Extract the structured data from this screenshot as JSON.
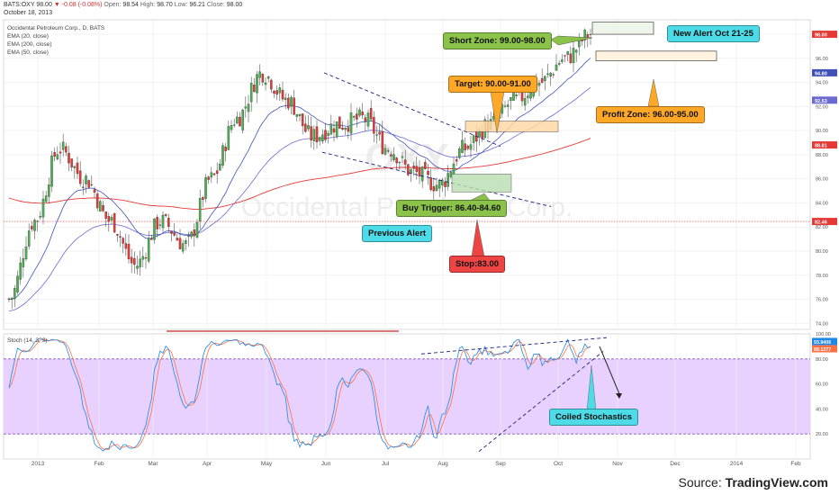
{
  "header": {
    "symbol": "BATS:OXY",
    "last": "98.00",
    "change": "▼ -0.08 (-0.08%)",
    "open_label": "Open:",
    "open": "98.54",
    "high_label": "High:",
    "high": "98.70",
    "low_label": "Low:",
    "low": "96.21",
    "close_label": "Close:",
    "close": "98.00",
    "date": "October 18, 2013"
  },
  "indicators": {
    "title": "Occidental Petroleum Corp., D, BATS",
    "ema20": "EMA (20, close)",
    "ema200": "EMA (200, close)",
    "ema50": "EMA (50, close)",
    "stoch": "Stoch (14, 3, 3)"
  },
  "watermark": {
    "symbol": "OXY",
    "name": "Occidental Petroleum Corp."
  },
  "callouts": {
    "short_zone": "Short Zone: 99.00-98.00",
    "new_alert": "New Alert Oct 21-25",
    "target": "Target: 90.00-91.00",
    "profit_zone": "Profit Zone: 96.00-95.00",
    "buy_trigger": "Buy Trigger: 86.40-84.60",
    "previous_alert": "Previous Alert",
    "stop": "Stop:83.00",
    "coiled": "Coiled Stochastics"
  },
  "source": {
    "prefix": "Source: ",
    "brand": "TradingView.com"
  },
  "colors": {
    "up": "#4caf50",
    "down": "#e53935",
    "ema20": "#3f51b5",
    "ema50": "#6a6ad0",
    "ema200": "#e53935",
    "stoch_k": "#1e88e5",
    "stoch_d": "#ff7043",
    "stoch_band": "#e6ccff"
  },
  "chart_data": {
    "type": "candlestick",
    "x_ticks": [
      "2013",
      "Feb",
      "Mar",
      "Apr",
      "May",
      "Jun",
      "Jul",
      "Aug",
      "Sep",
      "Oct",
      "Nov",
      "Dec",
      "2014",
      "Feb"
    ],
    "y_ticks": [
      "98.00",
      "96.00",
      "94.00",
      "92.00",
      "90.00",
      "88.00",
      "86.00",
      "84.00",
      "82.00",
      "80.00",
      "78.00",
      "76.00",
      "74.00"
    ],
    "ylim": [
      73.5,
      99.2
    ],
    "price_tags": [
      {
        "value": 98.0,
        "label": "98.00",
        "color": "#e53935"
      },
      {
        "value": 94.8,
        "label": "94.80",
        "color": "#3f51b5"
      },
      {
        "value": 92.53,
        "label": "92.53",
        "color": "#6a6ad0"
      },
      {
        "value": 88.81,
        "label": "88.81",
        "color": "#e53935"
      },
      {
        "value": 82.46,
        "label": "82.46",
        "color": "#e53935"
      }
    ],
    "key_points": [
      {
        "label": "early Jan",
        "close": 76.0
      },
      {
        "label": "mid Jan",
        "close": 82.5
      },
      {
        "label": "late Jan",
        "close": 88.5
      },
      {
        "label": "mid Feb",
        "close": 86.0
      },
      {
        "label": "early Mar",
        "close": 82.5
      },
      {
        "label": "early Apr",
        "close": 78.8
      },
      {
        "label": "mid Apr",
        "close": 82.5
      },
      {
        "label": "late Apr",
        "close": 80.5
      },
      {
        "label": "early May",
        "close": 86.0
      },
      {
        "label": "mid May",
        "close": 91.0
      },
      {
        "label": "late May",
        "close": 94.8
      },
      {
        "label": "early Jun",
        "close": 92.5
      },
      {
        "label": "mid Jun",
        "close": 89.5
      },
      {
        "label": "early Jul",
        "close": 90.5
      },
      {
        "label": "late Jul",
        "close": 91.0
      },
      {
        "label": "early Aug",
        "close": 88.5
      },
      {
        "label": "mid Aug",
        "close": 86.5
      },
      {
        "label": "late Aug",
        "close": 85.5
      },
      {
        "label": "early Sep",
        "close": 88.5
      },
      {
        "label": "mid Sep",
        "close": 90.5
      },
      {
        "label": "late Sep",
        "close": 92.5
      },
      {
        "label": "early Oct",
        "close": 94.0
      },
      {
        "label": "mid Oct",
        "close": 96.0
      },
      {
        "label": "Oct 18",
        "close": 98.0
      }
    ],
    "zones": [
      {
        "name": "Short Zone",
        "low": 98.0,
        "high": 99.0
      },
      {
        "name": "Profit Zone",
        "low": 95.0,
        "high": 96.0
      },
      {
        "name": "Target",
        "low": 90.0,
        "high": 91.0
      },
      {
        "name": "Buy Trigger",
        "low": 84.6,
        "high": 86.4
      }
    ],
    "stop": 83.0,
    "stoch_ticks": [
      "100.00",
      "80.00",
      "60.00",
      "40.00",
      "20.00"
    ],
    "stoch_ylim": [
      0,
      100
    ],
    "stoch_band": [
      20,
      80
    ],
    "stoch_tags": [
      {
        "value": 93.94,
        "label": "93.9406",
        "color": "#1e88e5"
      },
      {
        "value": 88.14,
        "label": "88.1377",
        "color": "#ff7043"
      }
    ]
  }
}
